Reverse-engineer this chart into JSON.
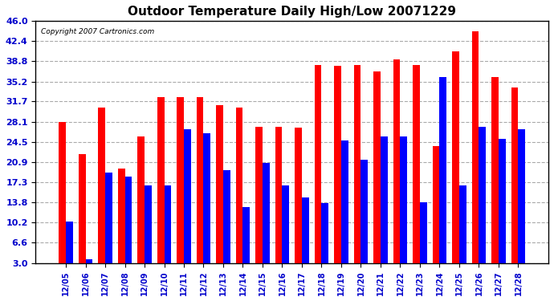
{
  "title": "Outdoor Temperature Daily High/Low 20071229",
  "copyright": "Copyright 2007 Cartronics.com",
  "dates": [
    "12/05",
    "12/06",
    "12/07",
    "12/08",
    "12/09",
    "12/10",
    "12/11",
    "12/12",
    "12/13",
    "12/14",
    "12/15",
    "12/16",
    "12/17",
    "12/18",
    "12/19",
    "12/20",
    "12/21",
    "12/22",
    "12/23",
    "12/24",
    "12/25",
    "12/26",
    "12/27",
    "12/28"
  ],
  "highs": [
    28.1,
    22.4,
    30.6,
    19.8,
    25.5,
    32.5,
    32.5,
    32.5,
    31.0,
    30.6,
    27.2,
    27.2,
    27.0,
    38.2,
    38.0,
    38.2,
    37.0,
    39.2,
    38.2,
    23.8,
    40.5,
    44.2,
    36.0,
    34.2
  ],
  "lows": [
    10.4,
    3.6,
    19.0,
    18.4,
    16.8,
    16.8,
    26.8,
    26.0,
    19.5,
    13.0,
    20.8,
    16.8,
    14.6,
    13.6,
    24.8,
    21.4,
    25.5,
    25.5,
    13.8,
    36.0,
    16.8,
    27.2,
    25.0,
    26.8
  ],
  "high_color": "#ff0000",
  "low_color": "#0000ff",
  "background_color": "#ffffff",
  "plot_bg_color": "#ffffff",
  "grid_color": "#aaaaaa",
  "yticks": [
    3.0,
    6.6,
    10.2,
    13.8,
    17.3,
    20.9,
    24.5,
    28.1,
    31.7,
    35.2,
    38.8,
    42.4,
    46.0
  ],
  "ymin": 3.0,
  "ymax": 46.0,
  "bar_width": 0.35
}
